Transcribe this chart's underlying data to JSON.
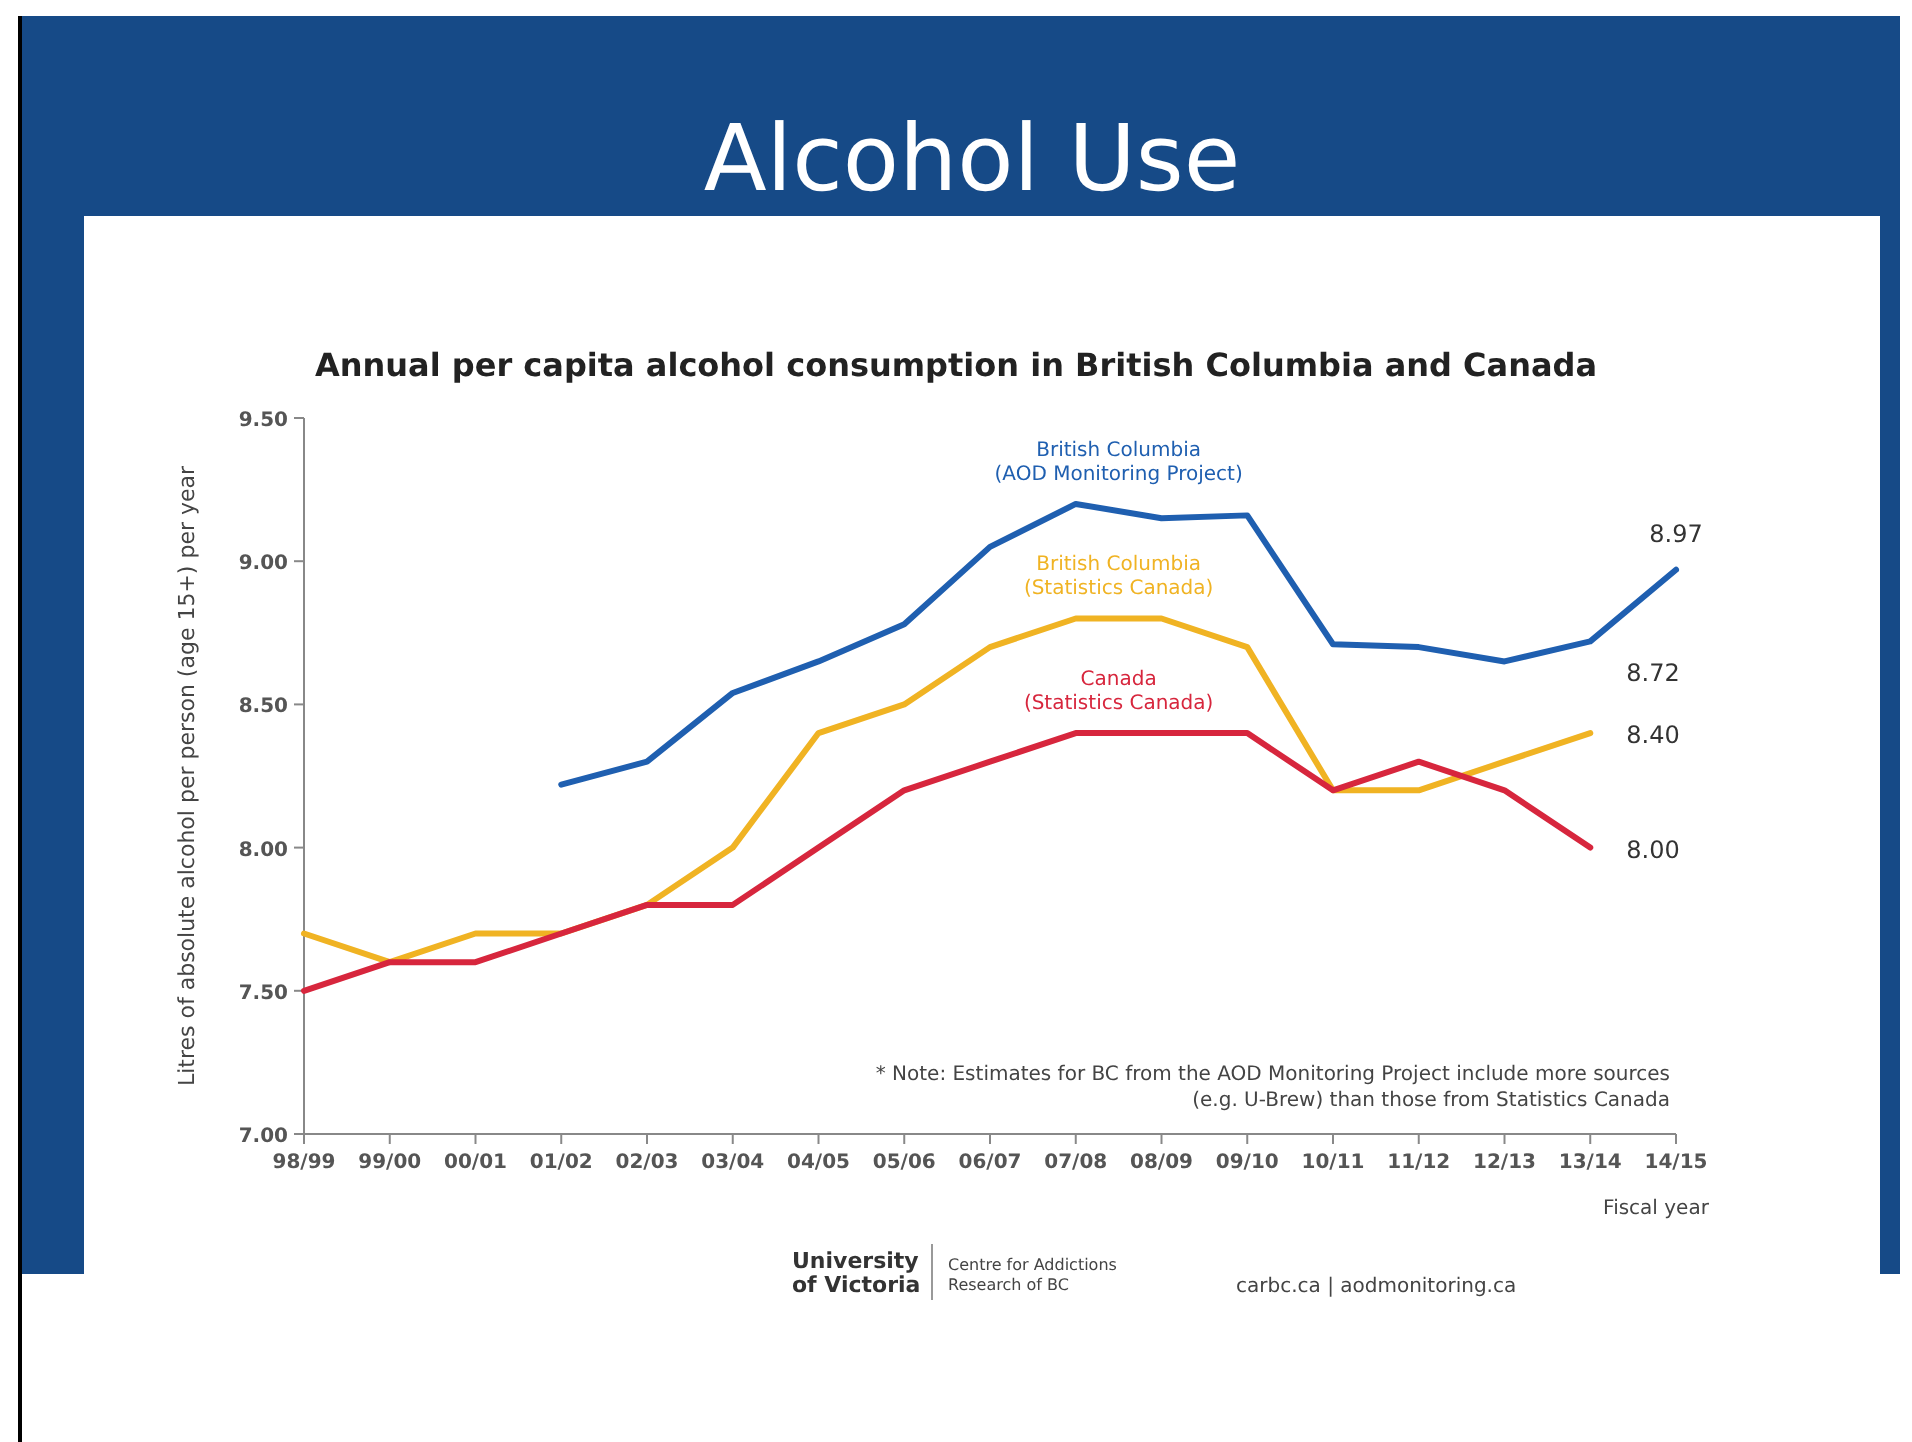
{
  "chart_data": {
    "type": "line",
    "title": "Alcohol Use",
    "subtitle": "Annual per capita alcohol consumption in British Columbia and Canada",
    "xlabel": "Fiscal year",
    "ylabel": "Litres of absolute alcohol per person (age 15+) per year",
    "categories": [
      "98/99",
      "99/00",
      "00/01",
      "01/02",
      "02/03",
      "03/04",
      "04/05",
      "05/06",
      "06/07",
      "07/08",
      "08/09",
      "09/10",
      "10/11",
      "11/12",
      "12/13",
      "13/14",
      "14/15"
    ],
    "series": [
      {
        "name": "British Columbia\n(AOD Monitoring Project)",
        "color": "#1f5fb0",
        "values": [
          null,
          null,
          null,
          8.22,
          8.3,
          8.54,
          8.65,
          8.78,
          9.05,
          9.2,
          9.15,
          9.16,
          8.71,
          8.7,
          8.65,
          8.72,
          8.97
        ],
        "value_labels": [
          null,
          null,
          null,
          null,
          null,
          null,
          null,
          null,
          null,
          null,
          null,
          null,
          null,
          null,
          null,
          "8.72",
          "8.97"
        ]
      },
      {
        "name": "British Columbia\n(Statistics Canada)",
        "color": "#f0b323",
        "values": [
          7.7,
          7.6,
          7.7,
          7.7,
          7.8,
          8.0,
          8.4,
          8.5,
          8.7,
          8.8,
          8.8,
          8.7,
          8.2,
          8.2,
          8.3,
          8.4,
          null
        ],
        "value_labels": [
          null,
          null,
          null,
          null,
          null,
          null,
          null,
          null,
          null,
          null,
          null,
          null,
          null,
          null,
          null,
          "8.40",
          null
        ]
      },
      {
        "name": "Canada\n(Statistics Canada)",
        "color": "#d7263d",
        "values": [
          7.5,
          7.6,
          7.6,
          7.7,
          7.8,
          7.8,
          8.0,
          8.2,
          8.3,
          8.4,
          8.4,
          8.4,
          8.2,
          8.3,
          8.2,
          8.0,
          null
        ],
        "value_labels": [
          null,
          null,
          null,
          null,
          null,
          null,
          null,
          null,
          null,
          null,
          null,
          null,
          null,
          null,
          null,
          "8.00",
          null
        ]
      }
    ],
    "ylim": [
      7.0,
      9.5
    ],
    "yticks": [
      {
        "value": 7.0,
        "label": "7.00"
      },
      {
        "value": 7.5,
        "label": "7.50"
      },
      {
        "value": 8.0,
        "label": "8.00"
      },
      {
        "value": 8.5,
        "label": "8.50"
      },
      {
        "value": 9.0,
        "label": "9.00"
      },
      {
        "value": 9.5,
        "label": "9.50"
      }
    ],
    "grid": false,
    "legend": false,
    "marker": "none",
    "line_style": "solid",
    "annotations": [
      "* Note: Estimates for BC from the AOD Monitoring Project include more sources\n(e.g. U-Brew) than those from Statistics Canada",
      "University\nof Victoria",
      "Centre for Addictions\nResearch of BC",
      "carbc.ca | aodmonitoring.ca"
    ]
  }
}
